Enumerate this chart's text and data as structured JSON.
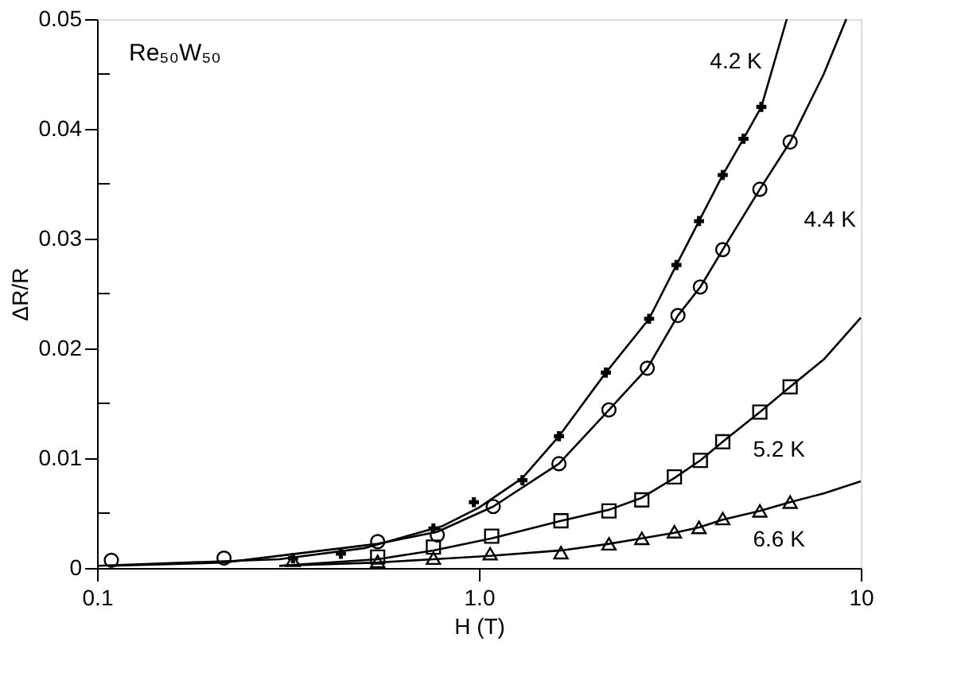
{
  "chart_data": {
    "type": "scatter",
    "xlabel": "H (T)",
    "ylabel": "ΔR/R",
    "log": "x",
    "xlim": [
      0.1,
      10
    ],
    "xticks": [
      0.1,
      {
        "value": 1,
        "label": "1.0"
      },
      10
    ],
    "ylim": [
      0,
      0.05
    ],
    "yticks": [
      0,
      {
        "value": 0.005,
        "label": null
      },
      0.01,
      {
        "value": 0.015,
        "label": null
      },
      0.02,
      {
        "value": 0.025,
        "label": null
      },
      0.03,
      {
        "value": 0.035,
        "label": null
      },
      0.04,
      {
        "value": 0.045,
        "label": null
      },
      0.05
    ],
    "grid": false,
    "legend": false,
    "series": [
      {
        "name": "4.2 K",
        "marker": "cross",
        "color": "#000000",
        "x": [
          0.326,
          0.435,
          0.76,
          0.97,
          1.3,
          1.62,
          2.15,
          2.79,
          3.29,
          3.77,
          4.35,
          4.93,
          5.49
        ],
        "values": [
          0.0009,
          0.0013,
          0.0036,
          0.006,
          0.008,
          0.012,
          0.0178,
          0.0227,
          0.0276,
          0.0316,
          0.0358,
          0.0391,
          0.042
        ]
      },
      {
        "name": "4.4 K",
        "marker": "circle",
        "color": "#000000",
        "x": [
          0.109,
          0.215,
          0.543,
          0.778,
          1.09,
          1.62,
          2.19,
          2.76,
          3.32,
          3.8,
          4.35,
          5.44,
          6.53
        ],
        "values": [
          0.0007,
          0.0009,
          0.0024,
          0.003,
          0.0056,
          0.0095,
          0.0144,
          0.0182,
          0.023,
          0.0256,
          0.029,
          0.0345,
          0.0388
        ]
      },
      {
        "name": "5.2 K",
        "marker": "square",
        "color": "#000000",
        "x": [
          0.543,
          0.76,
          1.08,
          1.64,
          2.19,
          2.67,
          3.25,
          3.8,
          4.35,
          5.44,
          6.53
        ],
        "values": [
          0.001,
          0.0019,
          0.0029,
          0.0043,
          0.0052,
          0.0062,
          0.0083,
          0.0098,
          0.0115,
          0.0142,
          0.0165
        ]
      },
      {
        "name": "6.6 K",
        "marker": "triangle",
        "color": "#000000",
        "x": [
          0.326,
          0.543,
          0.76,
          1.07,
          1.64,
          2.19,
          2.67,
          3.25,
          3.77,
          4.35,
          5.44,
          6.53
        ],
        "values": [
          0.0007,
          0.0006,
          0.0009,
          0.0013,
          0.0014,
          0.0022,
          0.0027,
          0.0033,
          0.0037,
          0.0045,
          0.0052,
          0.006
        ]
      },
      {
        "type": "line",
        "line_style": "solid",
        "color": "#000000",
        "x": [
          0.1,
          0.3,
          0.5,
          0.8,
          1.0,
          1.3,
          1.62,
          2.15,
          2.79,
          3.29,
          3.77,
          4.35,
          4.93,
          5.49,
          6.4
        ],
        "values": [
          0.0002,
          0.0008,
          0.0018,
          0.0038,
          0.0055,
          0.0082,
          0.012,
          0.0178,
          0.0227,
          0.0276,
          0.0316,
          0.0358,
          0.0391,
          0.042,
          0.05
        ]
      },
      {
        "type": "line",
        "line_style": "solid",
        "color": "#000000",
        "x": [
          0.109,
          0.215,
          0.543,
          0.778,
          1.09,
          1.62,
          2.19,
          2.76,
          3.32,
          3.8,
          4.35,
          5.44,
          6.53,
          8.0,
          9.16
        ],
        "values": [
          0.0002,
          0.0005,
          0.0022,
          0.0033,
          0.0056,
          0.0095,
          0.0144,
          0.0182,
          0.023,
          0.0256,
          0.029,
          0.0345,
          0.0388,
          0.045,
          0.05
        ]
      },
      {
        "type": "line",
        "line_style": "solid",
        "color": "#000000",
        "x": [
          0.3,
          0.543,
          0.76,
          1.08,
          1.64,
          2.19,
          2.67,
          3.25,
          3.8,
          4.35,
          5.44,
          6.53,
          8.0,
          10
        ],
        "values": [
          0.0002,
          0.0008,
          0.0016,
          0.0027,
          0.0043,
          0.0053,
          0.0064,
          0.0082,
          0.0098,
          0.0115,
          0.0142,
          0.0165,
          0.019,
          0.0228
        ]
      },
      {
        "type": "line",
        "line_style": "solid",
        "color": "#000000",
        "x": [
          0.3,
          0.543,
          0.76,
          1.07,
          1.64,
          2.19,
          2.67,
          3.25,
          3.77,
          4.35,
          5.44,
          6.53,
          8.0,
          10
        ],
        "values": [
          0.0002,
          0.0005,
          0.0008,
          0.0011,
          0.0016,
          0.0022,
          0.0027,
          0.0032,
          0.0037,
          0.0044,
          0.0052,
          0.006,
          0.0068,
          0.0079
        ]
      }
    ],
    "annotations": [
      "Re₅₀W₅₀"
    ]
  }
}
